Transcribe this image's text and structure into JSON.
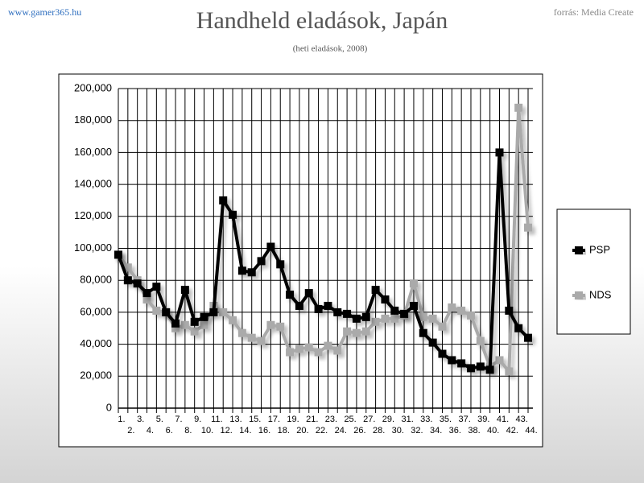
{
  "chart_data": {
    "type": "line",
    "title": "Handheld eladások, Japán",
    "subtitle": "(heti eladások, 2008)",
    "annotations": [
      "www.gamer365.hu",
      "forrás: Media Create"
    ],
    "categories": [
      "1.",
      "2.",
      "3.",
      "4.",
      "5.",
      "6.",
      "7.",
      "8.",
      "9.",
      "10.",
      "11.",
      "12.",
      "13.",
      "14.",
      "15.",
      "16.",
      "17.",
      "18.",
      "19.",
      "20.",
      "21.",
      "22.",
      "23.",
      "24.",
      "25.",
      "26.",
      "27.",
      "28.",
      "29.",
      "30.",
      "31.",
      "32.",
      "33.",
      "34.",
      "35.",
      "36.",
      "37.",
      "38.",
      "39.",
      "40.",
      "41.",
      "42.",
      "43.",
      "44."
    ],
    "series": [
      {
        "name": "NDS",
        "color": "#aaaaaa",
        "values": [
          96000,
          88000,
          80000,
          68000,
          61000,
          60000,
          50000,
          52000,
          48000,
          52000,
          64000,
          60000,
          55000,
          47000,
          44000,
          42000,
          52000,
          51000,
          35000,
          37000,
          38000,
          35000,
          39000,
          36000,
          48000,
          47000,
          48000,
          54000,
          56000,
          56000,
          58000,
          78000,
          57000,
          56000,
          51000,
          63000,
          61000,
          58000,
          42000,
          26000,
          30000,
          23000,
          188000,
          113000
        ]
      },
      {
        "name": "PSP",
        "color": "#000000",
        "values": [
          96000,
          80000,
          78000,
          72000,
          76000,
          60000,
          53000,
          74000,
          54000,
          57000,
          60000,
          130000,
          121000,
          86000,
          85000,
          92000,
          101000,
          90000,
          71000,
          64000,
          72000,
          62000,
          64000,
          60000,
          59000,
          56000,
          57000,
          74000,
          68000,
          61000,
          59000,
          64000,
          47000,
          41000,
          34000,
          30000,
          28000,
          25000,
          26000,
          24000,
          160000,
          61000,
          50000,
          44000
        ]
      }
    ],
    "ylim": [
      0,
      200000
    ],
    "yticks": [
      0,
      {
        "value": 20000,
        "label": "20,000"
      },
      {
        "value": 40000,
        "label": "40,000"
      },
      {
        "value": 60000,
        "label": "60,000"
      },
      {
        "value": 80000,
        "label": "80,000"
      },
      {
        "value": 100000,
        "label": "100,000"
      },
      {
        "value": 120000,
        "label": "120,000"
      },
      {
        "value": 140000,
        "label": "140,000"
      },
      {
        "value": 160000,
        "label": "160,000"
      },
      {
        "value": 180000,
        "label": "180,000"
      },
      {
        "value": 200000,
        "label": "200,000"
      }
    ],
    "grid": true,
    "legend": "right"
  }
}
